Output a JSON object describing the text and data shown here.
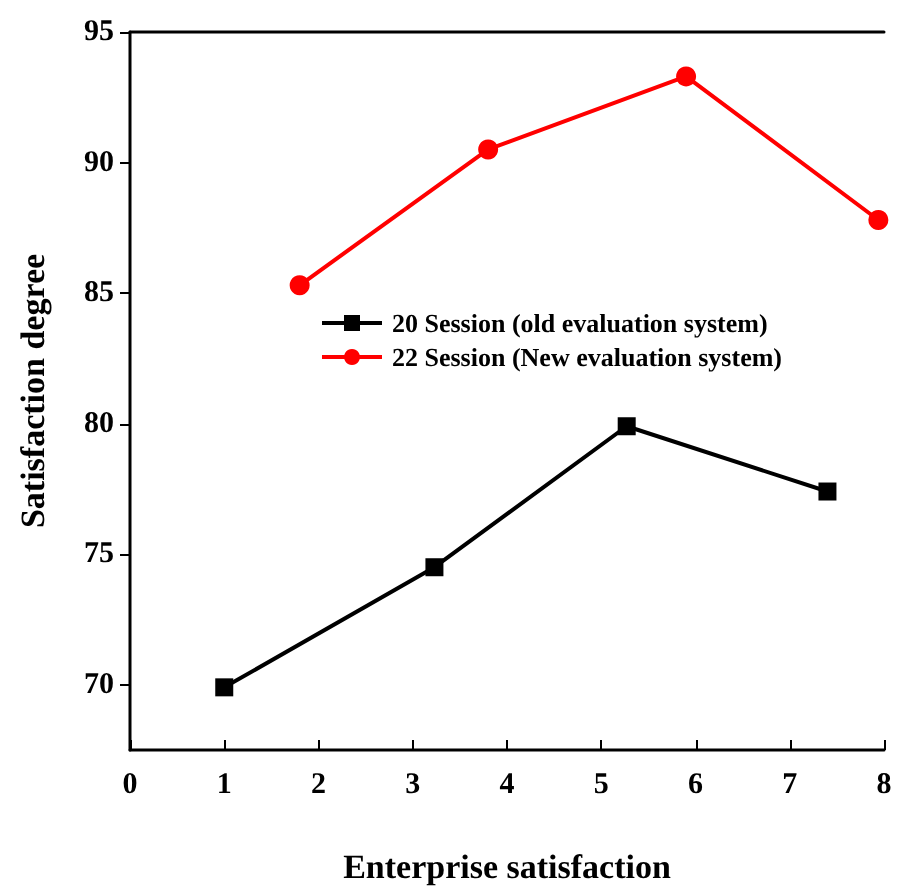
{
  "chart_data": {
    "type": "line",
    "xlabel": "Enterprise satisfaction",
    "ylabel": "Satisfaction degree",
    "xlim": [
      0,
      8
    ],
    "xticks": [
      0,
      1,
      2,
      3,
      4,
      5,
      6,
      7,
      8
    ],
    "ylim": [
      67.5,
      95
    ],
    "yticks": [
      70,
      75,
      80,
      85,
      90,
      95
    ],
    "grid": false,
    "legend": "center",
    "series": [
      {
        "name": "20 Session (old evaluation system)",
        "color": "#000000",
        "marker": "square",
        "x": [
          1,
          3.23,
          5.27,
          7.4
        ],
        "values": [
          69.9,
          74.5,
          79.9,
          77.4
        ]
      },
      {
        "name": "22 Session (New evaluation system)",
        "color": "#ff0000",
        "marker": "circle",
        "x": [
          1.8,
          3.8,
          5.9,
          7.94
        ],
        "values": [
          85.3,
          90.5,
          93.3,
          87.8
        ]
      }
    ]
  }
}
